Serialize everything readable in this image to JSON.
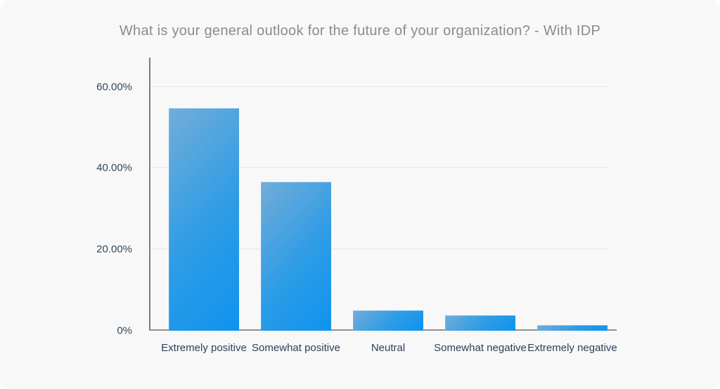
{
  "page": {
    "background_color": "#f8f8f9"
  },
  "chart_data": {
    "type": "bar",
    "title": "What is your general outlook for the future of your organization? - With IDP",
    "categories": [
      "Extremely positive",
      "Somewhat positive",
      "Neutral",
      "Somewhat negative",
      "Extremely negative"
    ],
    "values": [
      54.5,
      36.4,
      4.9,
      3.6,
      1.3
    ],
    "value_unit": "percent",
    "xlabel": "",
    "ylabel": "",
    "ylim": [
      0,
      67
    ],
    "yticks": [
      {
        "value": 60,
        "label": "60.00%"
      },
      {
        "value": 40,
        "label": "40.00%"
      },
      {
        "value": 20,
        "label": "20.00%"
      },
      {
        "value": 0,
        "label": "0%"
      }
    ],
    "grid": "horizontal",
    "legend": "none",
    "colors": {
      "title": "#8b8b8b",
      "tick_label": "#33475b",
      "category_label": "#2e3f58",
      "gridline": "#e7e7e9",
      "axis_line_vertical": "#7d7d7d",
      "axis_line_horizontal": "#8f9092",
      "bar_gradient_start": "#72add8",
      "bar_gradient_end": "#0f93ef",
      "background": "#f8f8f9"
    }
  }
}
